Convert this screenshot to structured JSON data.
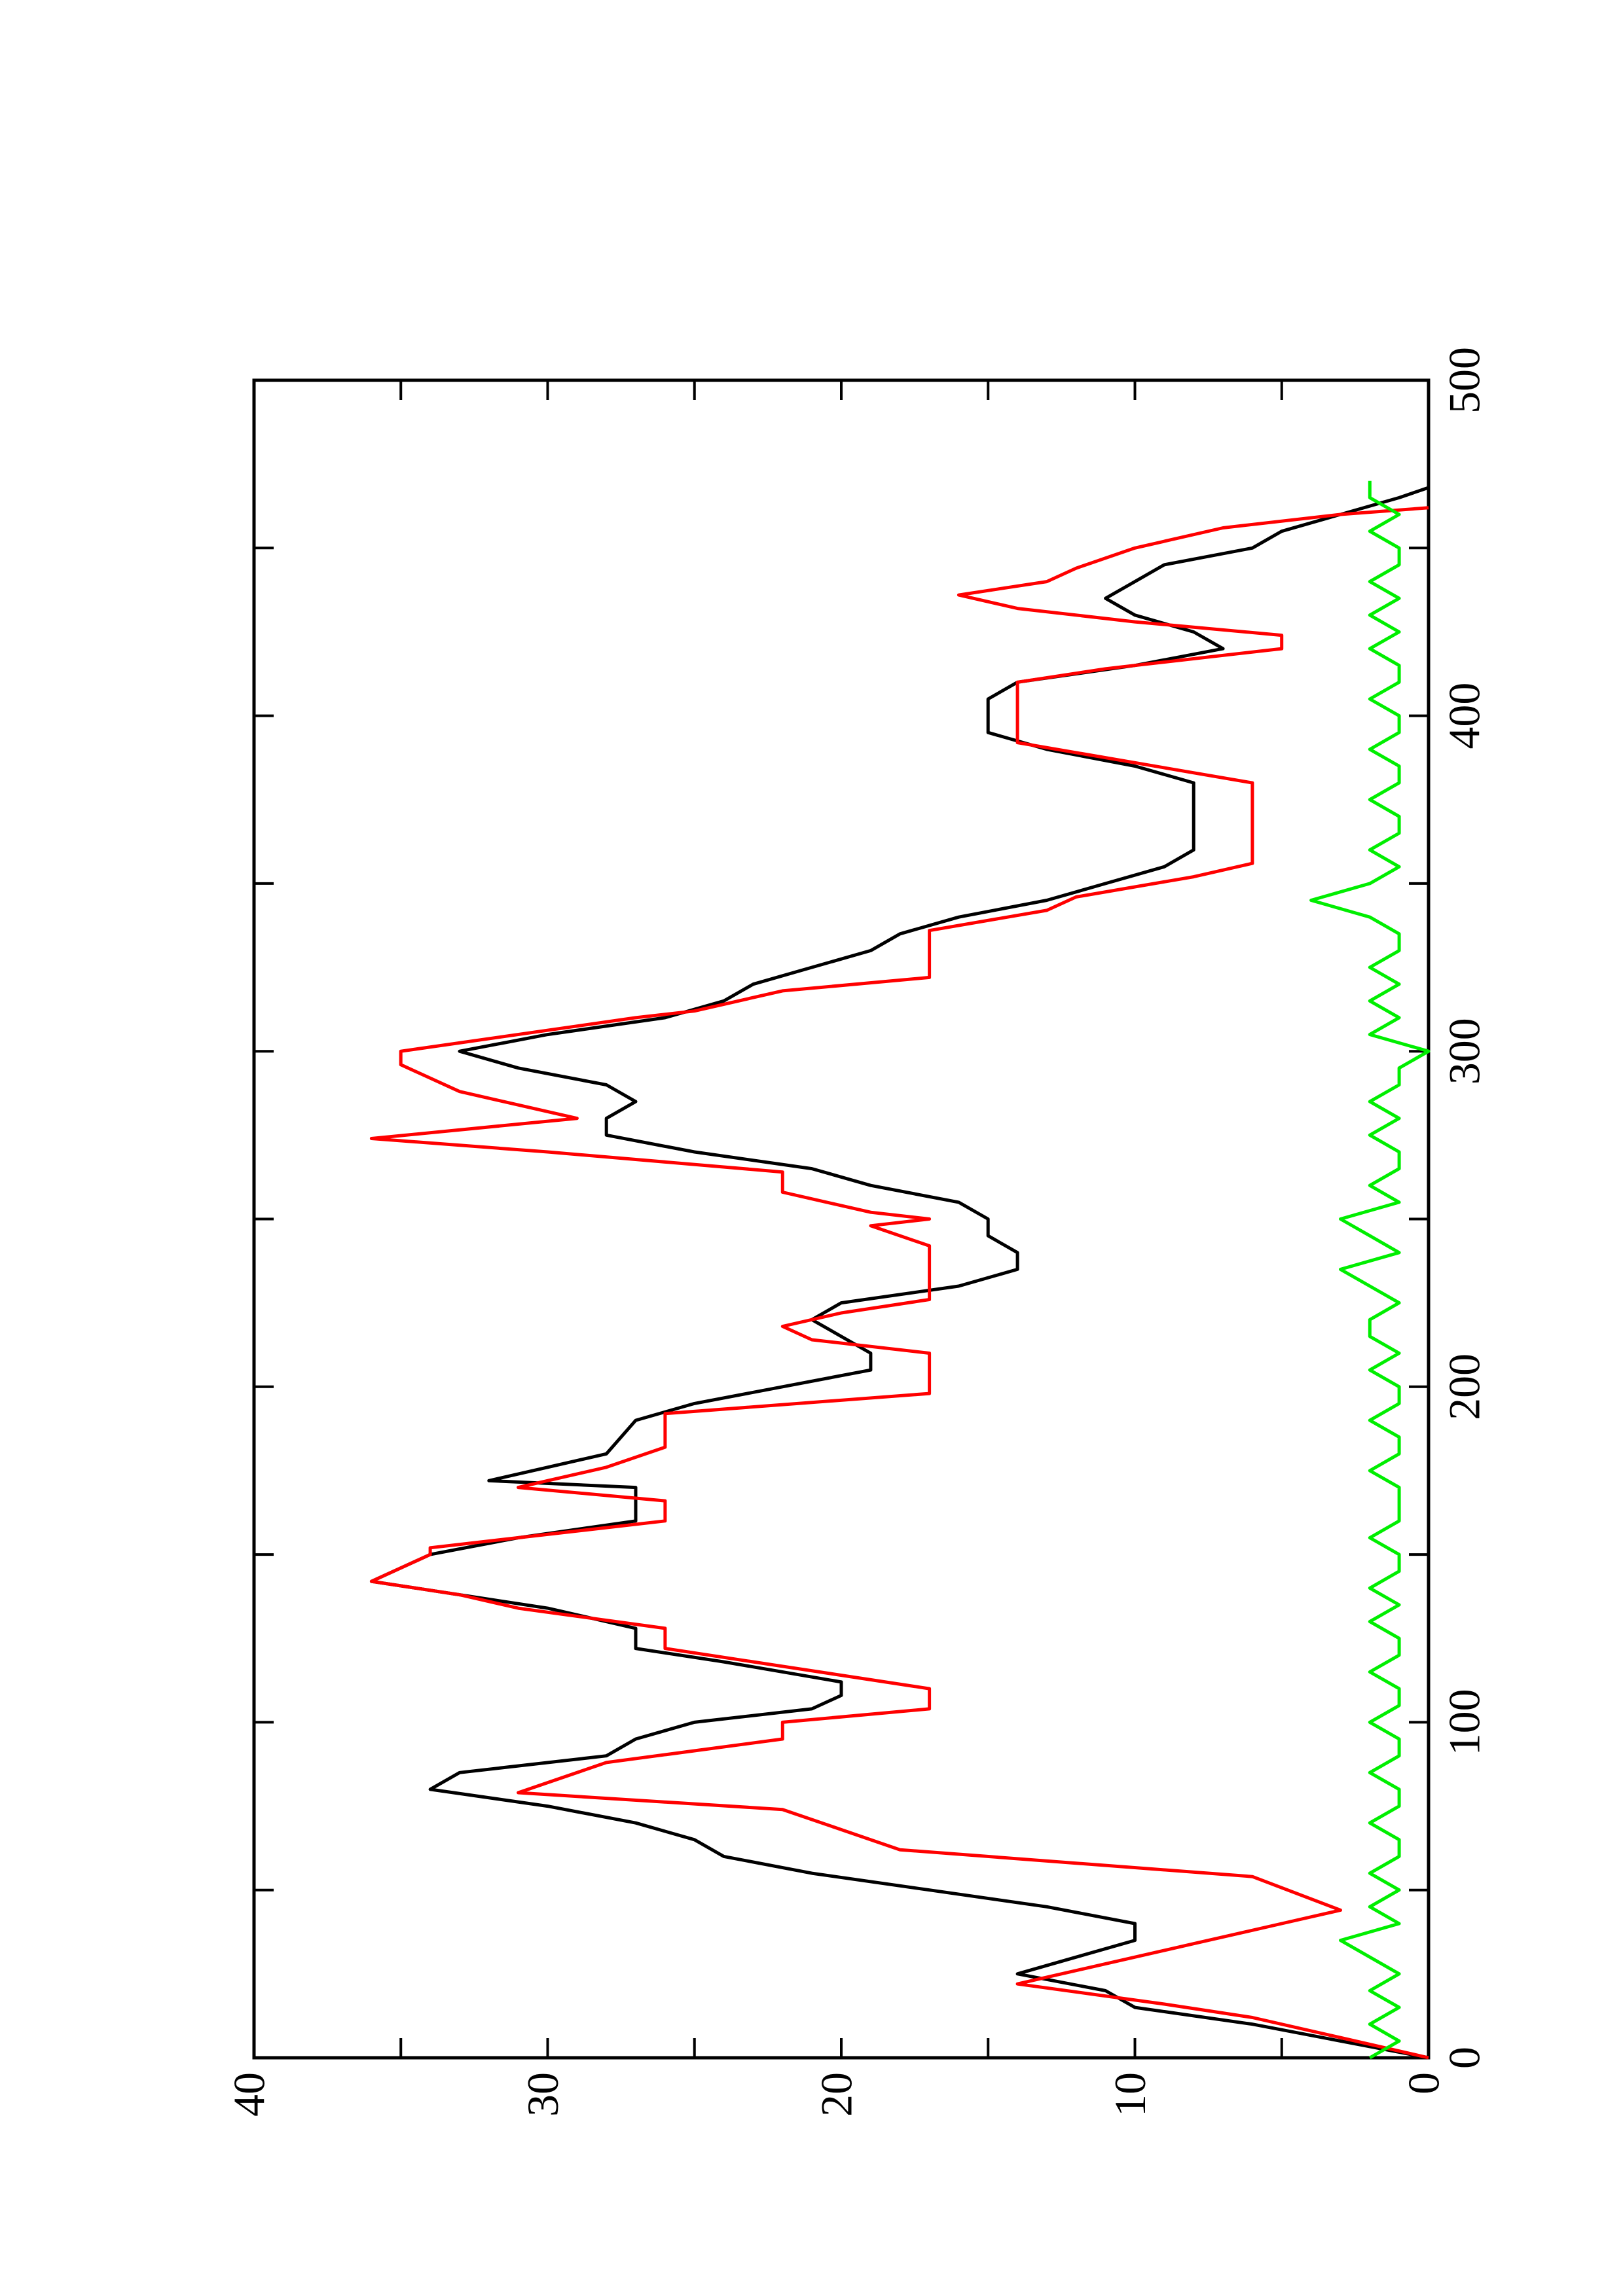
{
  "chart_data": {
    "type": "line",
    "xlim": [
      0,
      500
    ],
    "ylim": [
      0,
      40
    ],
    "xticks": [
      0,
      100,
      200,
      300,
      400,
      500
    ],
    "yticks": [
      0,
      10,
      20,
      30,
      40
    ],
    "xminor_ticks": [
      50,
      150,
      250,
      350,
      450
    ],
    "yminor_ticks": [
      5,
      15,
      25,
      35
    ],
    "rotated": true,
    "series": [
      {
        "color": "#000000",
        "x": [
          0,
          5,
          10,
          15,
          20,
          25,
          30,
          35,
          40,
          45,
          50,
          55,
          60,
          65,
          70,
          75,
          80,
          85,
          90,
          95,
          100,
          104,
          108,
          112,
          118,
          122,
          128,
          134,
          138,
          142,
          146,
          150,
          155,
          160,
          165,
          170,
          172,
          176,
          180,
          190,
          195,
          200,
          205,
          210,
          215,
          220,
          225,
          230,
          235,
          240,
          245,
          250,
          255,
          260,
          265,
          270,
          275,
          280,
          285,
          290,
          295,
          300,
          305,
          310,
          315,
          320,
          325,
          330,
          335,
          340,
          345,
          350,
          355,
          360,
          370,
          380,
          385,
          390,
          395,
          400,
          405,
          410,
          415,
          420,
          425,
          430,
          435,
          440,
          445,
          450,
          455,
          460,
          465,
          468
        ],
        "values": [
          0,
          3,
          6,
          10,
          11,
          14,
          12,
          10,
          10,
          13,
          17,
          21,
          24,
          25,
          27,
          30,
          34,
          33,
          28,
          27,
          25,
          21,
          20,
          20,
          24,
          27,
          27,
          30,
          33,
          36,
          35,
          34,
          31,
          27,
          27,
          27,
          32,
          30,
          28,
          27,
          25,
          22,
          19,
          19,
          20,
          21,
          20,
          16,
          14,
          14,
          15,
          15,
          16,
          19,
          21,
          25,
          28,
          28,
          27,
          28,
          31,
          33,
          30,
          26,
          24,
          23,
          21,
          19,
          18,
          16,
          13,
          11,
          9,
          8,
          8,
          8,
          10,
          13,
          15,
          15,
          15,
          14,
          10,
          7,
          8,
          10,
          11,
          10,
          9,
          6,
          5,
          3,
          1,
          0
        ]
      },
      {
        "color": "#ff0000",
        "x": [
          0,
          6,
          12,
          16,
          22,
          34,
          40,
          44,
          54,
          62,
          74,
          79,
          88,
          95,
          100,
          104,
          110,
          122,
          128,
          134,
          138,
          142,
          150,
          152,
          160,
          166,
          170,
          176,
          182,
          192,
          198,
          210,
          214,
          218,
          222,
          226,
          238,
          242,
          248,
          250,
          252,
          258,
          264,
          270,
          274,
          280,
          288,
          296,
          300,
          310,
          312,
          318,
          322,
          336,
          342,
          346,
          352,
          356,
          380,
          392,
          404,
          410,
          414,
          420,
          424,
          428,
          432,
          436,
          440,
          444,
          450,
          456,
          460,
          462
        ],
        "values": [
          0,
          3,
          6,
          9,
          14,
          8,
          5,
          3,
          6,
          18,
          22,
          31,
          28,
          22,
          22,
          17,
          17,
          26,
          26,
          31,
          33,
          36,
          34,
          34,
          26,
          26,
          31,
          28,
          26,
          26,
          17,
          17,
          21,
          22,
          20,
          17,
          17,
          17,
          19,
          17,
          19,
          22,
          22,
          30,
          36,
          29,
          33,
          35,
          35,
          27,
          25,
          22,
          17,
          17,
          13,
          12,
          8,
          6,
          6,
          14,
          14,
          14,
          11,
          5,
          5,
          10,
          14,
          16,
          13,
          12,
          10,
          7,
          3,
          0
        ]
      },
      {
        "color": "#00ee00",
        "x": [
          0,
          5,
          10,
          15,
          20,
          25,
          30,
          35,
          40,
          45,
          50,
          55,
          60,
          65,
          70,
          75,
          80,
          85,
          90,
          95,
          100,
          105,
          110,
          115,
          120,
          125,
          130,
          135,
          140,
          145,
          150,
          155,
          160,
          165,
          170,
          175,
          180,
          185,
          190,
          195,
          200,
          205,
          210,
          215,
          220,
          225,
          230,
          235,
          240,
          245,
          250,
          255,
          260,
          265,
          270,
          275,
          280,
          285,
          290,
          295,
          300,
          305,
          310,
          315,
          320,
          325,
          330,
          335,
          340,
          345,
          350,
          355,
          360,
          365,
          370,
          375,
          380,
          385,
          390,
          395,
          400,
          405,
          410,
          415,
          420,
          425,
          430,
          435,
          440,
          445,
          450,
          455,
          460,
          465,
          470
        ],
        "values": [
          2,
          1,
          2,
          1,
          2,
          1,
          2,
          3,
          1,
          2,
          1,
          2,
          1,
          1,
          2,
          1,
          1,
          2,
          1,
          1,
          2,
          1,
          1,
          2,
          1,
          1,
          2,
          1,
          2,
          1,
          1,
          2,
          1,
          1,
          1,
          2,
          1,
          1,
          2,
          1,
          1,
          2,
          1,
          2,
          2,
          1,
          2,
          3,
          1,
          2,
          3,
          1,
          2,
          1,
          1,
          2,
          1,
          2,
          1,
          1,
          0,
          2,
          1,
          2,
          1,
          2,
          1,
          1,
          2,
          4,
          2,
          1,
          2,
          1,
          1,
          2,
          1,
          1,
          2,
          1,
          1,
          2,
          1,
          1,
          2,
          1,
          2,
          1,
          2,
          1,
          1,
          2,
          1,
          2,
          2
        ]
      }
    ]
  }
}
